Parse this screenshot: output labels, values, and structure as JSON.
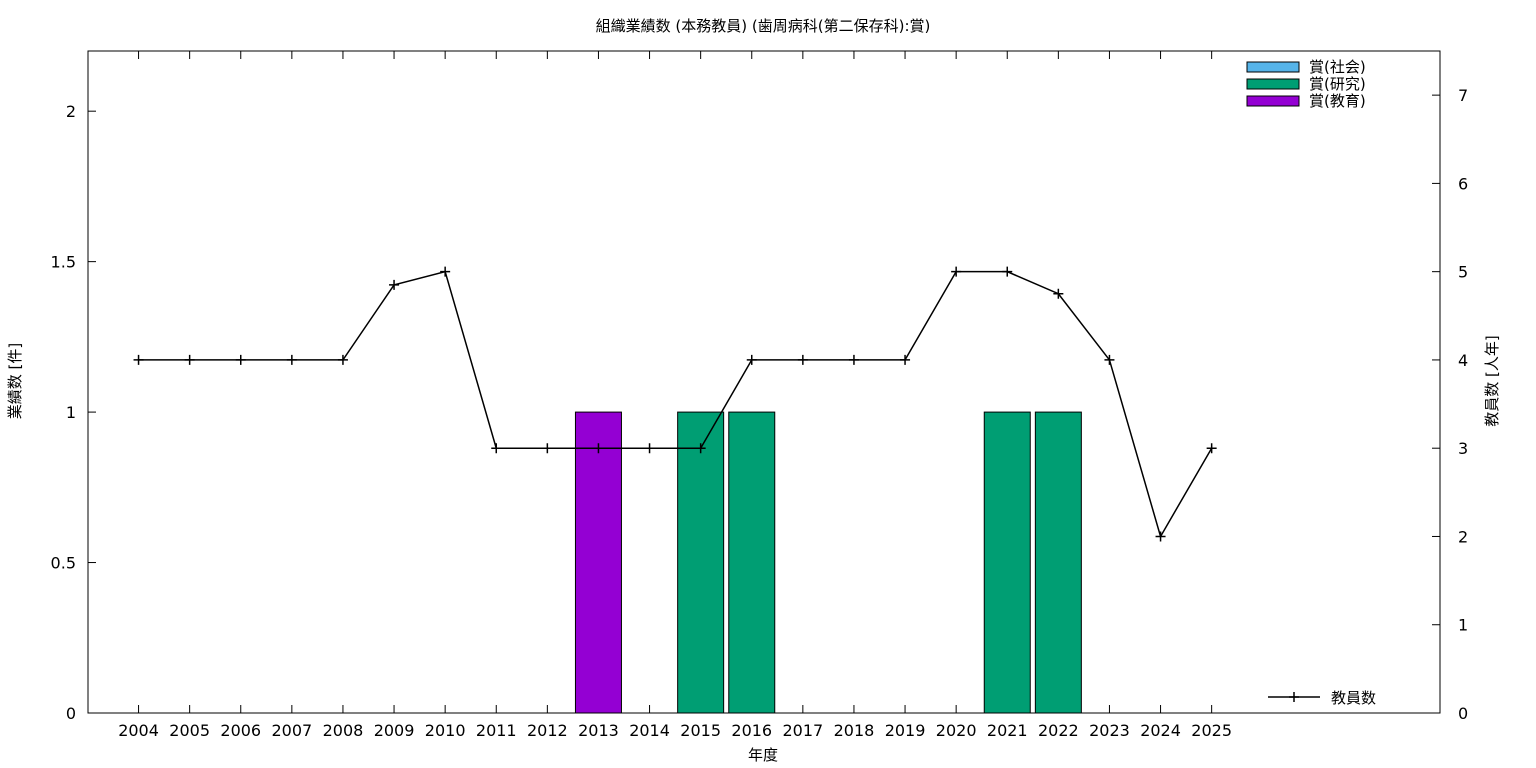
{
  "chart_data": {
    "type": "bar",
    "title": "組織業績数 (本務教員) (歯周病科(第二保存科):賞)",
    "xlabel": "年度",
    "ylabel": "業績数 [件]",
    "y2label": "教員数 [人年]",
    "categories": [
      "2004",
      "2005",
      "2006",
      "2007",
      "2008",
      "2009",
      "2010",
      "2011",
      "2012",
      "2013",
      "2014",
      "2015",
      "2016",
      "2017",
      "2018",
      "2019",
      "2020",
      "2021",
      "2022",
      "2023",
      "2024",
      "2025"
    ],
    "ylim": [
      0,
      2.2
    ],
    "yticks": [
      "0",
      "0.5",
      "1",
      "1.5",
      "2"
    ],
    "y2lim": [
      0,
      7.5
    ],
    "y2ticks": [
      "0",
      "1",
      "2",
      "3",
      "4",
      "5",
      "6",
      "7"
    ],
    "grid": false,
    "legend_position": "top-right",
    "series": [
      {
        "name": "賞(社会)",
        "color": "#56b4e9",
        "values": [
          0,
          0,
          0,
          0,
          0,
          0,
          0,
          0,
          0,
          0,
          0,
          0,
          0,
          0,
          0,
          0,
          0,
          0,
          0,
          0,
          0,
          0
        ]
      },
      {
        "name": "賞(研究)",
        "color": "#009e73",
        "values": [
          0,
          0,
          0,
          0,
          0,
          0,
          0,
          0,
          0,
          0,
          0,
          1,
          1,
          0,
          0,
          0,
          0,
          1,
          1,
          0,
          0,
          0
        ]
      },
      {
        "name": "賞(教育)",
        "color": "#9400d3",
        "values": [
          0,
          0,
          0,
          0,
          0,
          0,
          0,
          0,
          0,
          1,
          0,
          0,
          0,
          0,
          0,
          0,
          0,
          0,
          0,
          0,
          0,
          0
        ]
      }
    ],
    "line_series": {
      "name": "教員数",
      "axis": "y2",
      "color": "#000000",
      "values": [
        4,
        4,
        4,
        4,
        4,
        4.85,
        5,
        3,
        3,
        3,
        3,
        3,
        4,
        4,
        4,
        4,
        5,
        5,
        4.75,
        4,
        2,
        3
      ]
    }
  }
}
